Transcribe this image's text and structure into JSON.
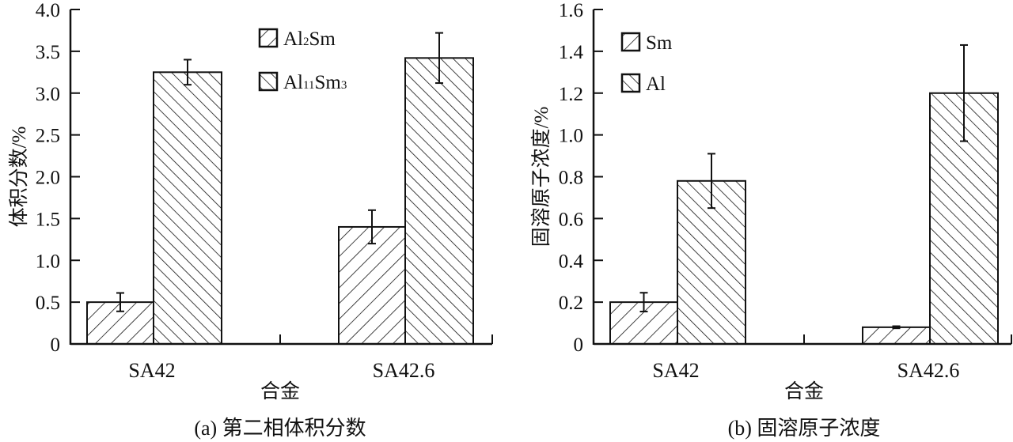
{
  "chart_data": [
    {
      "type": "bar",
      "caption": "(a) 第二相体积分数",
      "xlabel": "合金",
      "ylabel": "体积分数/%",
      "categories": [
        "SA42",
        "SA42.6"
      ],
      "ylim": [
        0,
        4.0
      ],
      "yticks": [
        "0",
        "0.5",
        "1.0",
        "1.5",
        "2.0",
        "2.5",
        "3.0",
        "3.5",
        "4.0"
      ],
      "ytick_values": [
        0,
        0.5,
        1.0,
        1.5,
        2.0,
        2.5,
        3.0,
        3.5,
        4.0
      ],
      "grid": false,
      "legend_placement": "top-center",
      "series": [
        {
          "name": "Al2Sm",
          "name_base": "Al",
          "name_sub1": "2",
          "name_mid": "Sm",
          "name_sub2": "",
          "hatch": "forward-diagonal",
          "values": [
            0.5,
            1.4
          ],
          "errors": [
            0.11,
            0.2
          ]
        },
        {
          "name": "Al11Sm3",
          "name_base": "Al",
          "name_sub1": "11",
          "name_mid": "Sm",
          "name_sub2": "3",
          "hatch": "back-diagonal",
          "values": [
            3.25,
            3.42
          ],
          "errors": [
            0.15,
            0.3
          ]
        }
      ]
    },
    {
      "type": "bar",
      "caption": "(b) 固溶原子浓度",
      "xlabel": "合金",
      "ylabel": "固溶原子浓度/%",
      "categories": [
        "SA42",
        "SA42.6"
      ],
      "ylim": [
        0,
        1.6
      ],
      "yticks": [
        "0",
        "0.2",
        "0.4",
        "0.6",
        "0.8",
        "1.0",
        "1.2",
        "1.4",
        "1.6"
      ],
      "ytick_values": [
        0,
        0.2,
        0.4,
        0.6,
        0.8,
        1.0,
        1.2,
        1.4,
        1.6
      ],
      "grid": false,
      "legend_placement": "top-left",
      "series": [
        {
          "name": "Sm",
          "name_base": "Sm",
          "name_sub1": "",
          "name_mid": "",
          "name_sub2": "",
          "hatch": "forward-diagonal",
          "values": [
            0.2,
            0.08
          ],
          "errors": [
            0.045,
            0.005
          ]
        },
        {
          "name": "Al",
          "name_base": "Al",
          "name_sub1": "",
          "name_mid": "",
          "name_sub2": "",
          "hatch": "back-diagonal",
          "values": [
            0.78,
            1.2
          ],
          "errors": [
            0.13,
            0.23
          ]
        }
      ]
    }
  ]
}
